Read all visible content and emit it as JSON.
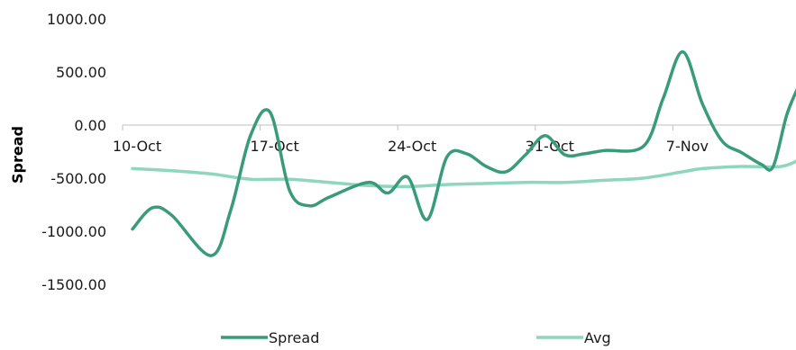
{
  "chart_data": {
    "type": "line",
    "ylabel": "Spread",
    "xlabel": "",
    "title": "",
    "ylim": [
      -1500,
      1000
    ],
    "yticks": [
      "1000.00",
      "500.00",
      "0.00",
      "-500.00",
      "-1000.00",
      "-1500.00"
    ],
    "ytick_values": [
      1000,
      500,
      0,
      -500,
      -1000,
      -1500
    ],
    "xlim": [
      0,
      33
    ],
    "xticks": [
      {
        "label": "10-Oct",
        "x": 0
      },
      {
        "label": "17-Oct",
        "x": 7
      },
      {
        "label": "24-Oct",
        "x": 14
      },
      {
        "label": "31-Oct",
        "x": 21
      },
      {
        "label": "7-Nov",
        "x": 28
      }
    ],
    "series": [
      {
        "name": "Spread",
        "color": "#3a9b7c",
        "points": [
          [
            0,
            -980
          ],
          [
            1,
            -780
          ],
          [
            2,
            -850
          ],
          [
            4,
            -1230
          ],
          [
            5,
            -800
          ],
          [
            6,
            -100
          ],
          [
            7,
            120
          ],
          [
            8,
            -620
          ],
          [
            9,
            -760
          ],
          [
            10,
            -680
          ],
          [
            12,
            -540
          ],
          [
            13,
            -640
          ],
          [
            14,
            -490
          ],
          [
            15,
            -890
          ],
          [
            16,
            -300
          ],
          [
            17,
            -270
          ],
          [
            18,
            -390
          ],
          [
            19,
            -440
          ],
          [
            20,
            -280
          ],
          [
            21,
            -100
          ],
          [
            22,
            -280
          ],
          [
            23,
            -270
          ],
          [
            24,
            -240
          ],
          [
            26,
            -200
          ],
          [
            27,
            250
          ],
          [
            28,
            690
          ],
          [
            29,
            200
          ],
          [
            30,
            -150
          ],
          [
            31,
            -260
          ],
          [
            32,
            -370
          ],
          [
            32.6,
            -390
          ],
          [
            33.3,
            100
          ],
          [
            34,
            410
          ]
        ]
      },
      {
        "name": "Avg",
        "color": "#8fd6be",
        "points": [
          [
            0,
            -410
          ],
          [
            2,
            -430
          ],
          [
            4,
            -460
          ],
          [
            6,
            -510
          ],
          [
            8,
            -510
          ],
          [
            10,
            -540
          ],
          [
            12,
            -570
          ],
          [
            14,
            -580
          ],
          [
            16,
            -560
          ],
          [
            18,
            -550
          ],
          [
            20,
            -540
          ],
          [
            22,
            -540
          ],
          [
            24,
            -520
          ],
          [
            26,
            -500
          ],
          [
            28,
            -440
          ],
          [
            29,
            -410
          ],
          [
            31,
            -390
          ],
          [
            33,
            -390
          ],
          [
            34,
            -320
          ]
        ]
      }
    ],
    "legend": {
      "placement": "bottom",
      "entries": [
        "Spread",
        "Avg"
      ]
    },
    "grid": false
  }
}
